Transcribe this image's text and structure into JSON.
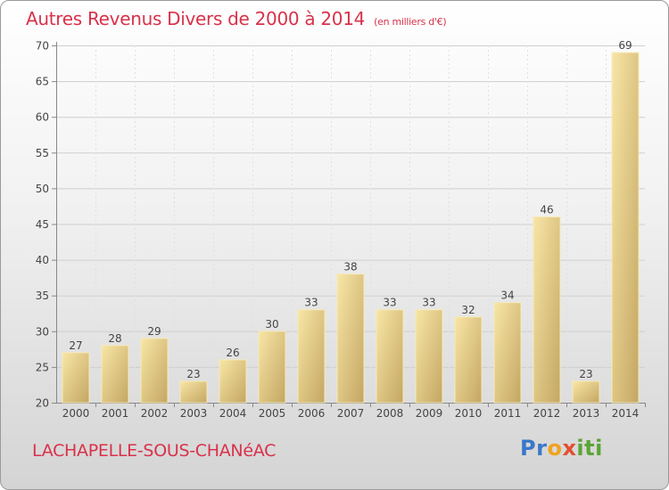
{
  "header": {
    "title": "Autres Revenus Divers de 2000 à 2014",
    "subtitle": "(en milliers d'€)"
  },
  "footer": {
    "place": "LACHAPELLE-SOUS-CHANéAC",
    "logo": {
      "p": "Pr",
      "o": "o",
      "x": "x",
      "i": "iti"
    }
  },
  "chart_data": {
    "type": "bar",
    "title": "Autres Revenus Divers de 2000 à 2014",
    "subtitle": "(en milliers d'€)",
    "categories": [
      "2000",
      "2001",
      "2002",
      "2003",
      "2004",
      "2005",
      "2006",
      "2007",
      "2008",
      "2009",
      "2010",
      "2011",
      "2012",
      "2013",
      "2014"
    ],
    "values": [
      27,
      28,
      29,
      23,
      26,
      30,
      33,
      38,
      33,
      33,
      32,
      34,
      46,
      23,
      69
    ],
    "ylim": [
      20,
      70
    ],
    "yticks": [
      20,
      25,
      30,
      35,
      40,
      45,
      50,
      55,
      60,
      65,
      70
    ],
    "grid": true,
    "colors": {
      "bar_light": "#f6e2a0",
      "bar_dark": "#c6a865",
      "title": "#d8324a"
    }
  }
}
